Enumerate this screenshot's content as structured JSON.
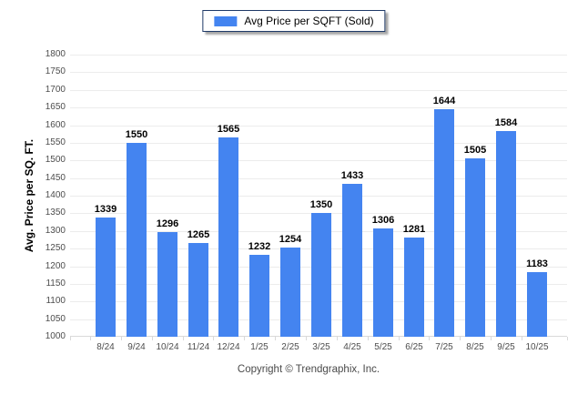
{
  "legend": {
    "label": "Avg Price per SQFT (Sold)"
  },
  "footer": {
    "copyright": "Copyright © Trendgraphix, Inc."
  },
  "colors": {
    "bar": "#4484f0",
    "gridline": "#ececec",
    "baseline": "#d9d9d9",
    "tick_label": "#4d4d4d",
    "value_label": "#000000",
    "legend_border": "#1f3a68",
    "background": "#ffffff"
  },
  "chart_data": {
    "type": "bar",
    "title": "",
    "xlabel": "",
    "ylabel": "Avg. Price per SQ. FT.",
    "categories": [
      "8/24",
      "9/24",
      "10/24",
      "11/24",
      "12/24",
      "1/25",
      "2/25",
      "3/25",
      "4/25",
      "5/25",
      "6/25",
      "7/25",
      "8/25",
      "9/25",
      "10/25"
    ],
    "values": [
      1339,
      1550,
      1296,
      1265,
      1565,
      1232,
      1254,
      1350,
      1433,
      1306,
      1281,
      1644,
      1505,
      1584,
      1183
    ],
    "ylim": [
      1000,
      1800
    ],
    "ytick_step": 50,
    "grid": true,
    "legend_entries": [
      "Avg Price per SQFT (Sold)"
    ],
    "legend_position": "top-center"
  }
}
